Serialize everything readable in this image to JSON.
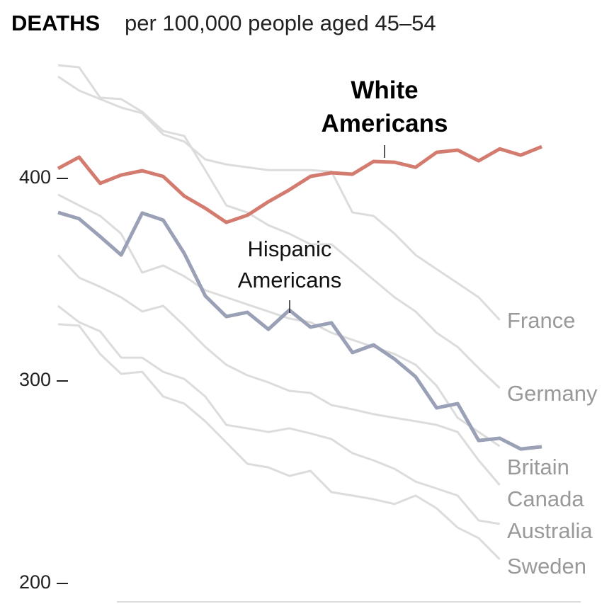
{
  "chart_data": {
    "type": "line",
    "title": "DEATHS",
    "subtitle": "per 100,000 people aged 45–54",
    "ylim": [
      190,
      460
    ],
    "yticks": [
      200,
      300,
      400
    ],
    "series": [
      {
        "name": "France",
        "color": "#dcdcdc",
        "values": [
          450.3,
          443.4,
          439.2,
          435.0,
          432.2,
          421.7,
          418.2,
          409.4,
          406.9,
          405.5,
          404.1,
          404.1,
          404.1,
          403.4,
          383.2,
          381.5,
          372.7,
          362.2,
          355.2,
          348.3,
          341.3,
          330.1,
          null,
          null
        ]
      },
      {
        "name": "Germany",
        "color": "#dcdcdc",
        "values": [
          455.9,
          454.9,
          439.9,
          439.2,
          432.9,
          423.4,
          421.0,
          404.1,
          386.7,
          383.2,
          376.9,
          372.7,
          367.5,
          367.5,
          358.7,
          350.0,
          341.3,
          334.3,
          323.8,
          316.8,
          306.3,
          296.5,
          null,
          null
        ]
      },
      {
        "name": "Britain",
        "color": "#dcdcdc",
        "values": [
          392.0,
          386.7,
          381.5,
          372.7,
          353.5,
          357.0,
          351.7,
          344.8,
          341.3,
          337.8,
          334.3,
          330.8,
          329.0,
          323.8,
          320.3,
          316.8,
          313.3,
          308.0,
          297.6,
          281.8,
          274.8,
          267.8,
          null,
          null
        ]
      },
      {
        "name": "Canada",
        "color": "#dcdcdc",
        "values": [
          362.2,
          351.0,
          346.5,
          341.3,
          334.3,
          337.1,
          327.3,
          316.8,
          308.0,
          302.8,
          299.3,
          295.1,
          294.1,
          288.1,
          286.0,
          283.6,
          281.8,
          280.1,
          278.3,
          274.8,
          260.8,
          248.6,
          null,
          null
        ]
      },
      {
        "name": "Australia",
        "color": "#dcdcdc",
        "values": [
          337.1,
          329.0,
          324.5,
          311.5,
          311.5,
          304.5,
          301.0,
          292.3,
          278.3,
          276.6,
          274.8,
          276.6,
          274.1,
          271.3,
          264.3,
          260.8,
          256.6,
          250.3,
          246.9,
          243.4,
          231.1,
          229.4,
          null,
          null
        ]
      },
      {
        "name": "Sweden",
        "color": "#dcdcdc",
        "values": [
          328.0,
          327.3,
          313.3,
          303.5,
          304.5,
          292.3,
          288.8,
          280.1,
          269.6,
          259.1,
          257.3,
          253.1,
          255.6,
          245.1,
          243.4,
          241.6,
          239.2,
          243.4,
          237.1,
          227.6,
          222.4,
          211.9,
          null,
          null
        ]
      },
      {
        "name": "Hispanic Americans",
        "color": "#9aa0b6",
        "values": [
          383.2,
          380.1,
          371.3,
          362.2,
          382.9,
          379.4,
          363.0,
          342.0,
          331.8,
          333.9,
          325.5,
          335.0,
          326.6,
          328.7,
          314.0,
          317.8,
          310.8,
          302.1,
          286.7,
          288.8,
          270.6,
          271.7,
          266.4,
          267.5
        ]
      },
      {
        "name": "White Americans",
        "color": "#d47b6f",
        "values": [
          404.9,
          410.5,
          397.6,
          401.7,
          403.8,
          401.0,
          391.3,
          385.3,
          378.3,
          381.8,
          388.5,
          394.4,
          401.0,
          402.8,
          402.1,
          408.4,
          408.0,
          405.5,
          412.9,
          414.0,
          408.7,
          414.6,
          411.5,
          415.7
        ]
      }
    ]
  }
}
